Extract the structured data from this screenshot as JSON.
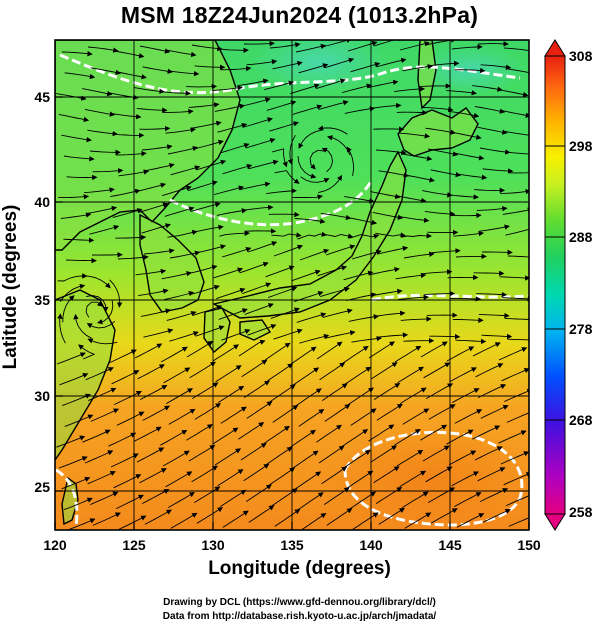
{
  "title": "MSM 18Z24Jun2024 (1013.2hPa)",
  "xlabel": "Longitude (degrees)",
  "ylabel": "Latitude  (degrees)",
  "credit_line1": "Drawing by DCL (https://www.gfd-dennou.org/library/dcl/)",
  "credit_line2": "Data from http://database.rish.kyoto-u.ac.jp/arch/jmadata/",
  "x_ticks": [
    "120",
    "125",
    "130",
    "135",
    "140",
    "145",
    "150"
  ],
  "y_ticks": [
    "45",
    "40",
    "35",
    "30",
    "25"
  ],
  "colorbar_ticks": [
    "308",
    "298",
    "288",
    "278",
    "268",
    "258"
  ],
  "colors": {
    "colorbar": [
      "#e4007f",
      "#b000c0",
      "#5000d8",
      "#0010f0",
      "#0060ff",
      "#00b0ff",
      "#00e0d8",
      "#20e090",
      "#30d84a",
      "#70e030",
      "#b8f020",
      "#e8f000",
      "#ffd000",
      "#ffa000",
      "#ff6010",
      "#e82010"
    ],
    "warm": "#f08a1a",
    "mid": "#c8e020",
    "cool": "#40e070"
  },
  "chart_data": {
    "type": "heatmap",
    "title": "MSM 18Z24Jun2024 (1013.2hPa)",
    "xlabel": "Longitude (degrees)",
    "ylabel": "Latitude  (degrees)",
    "xlim": [
      120,
      150
    ],
    "ylim": [
      22.4,
      47.6
    ],
    "x_ticks": [
      120,
      125,
      130,
      135,
      140,
      145,
      150
    ],
    "y_ticks": [
      25,
      30,
      35,
      40,
      45
    ],
    "colorbar": {
      "min": 258,
      "max": 308,
      "ticks": [
        258,
        268,
        278,
        288,
        298,
        308
      ]
    },
    "grid": true
  }
}
